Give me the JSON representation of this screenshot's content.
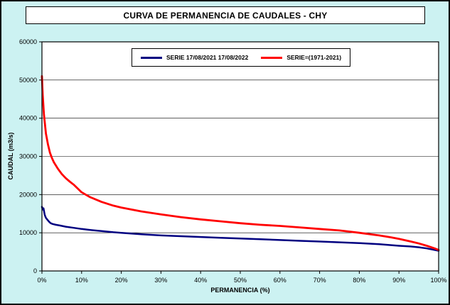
{
  "window": {
    "title": "CURVA DE PERMANENCIA DE CAUDALES - CHY"
  },
  "colors": {
    "background": "#CCF2F2",
    "plot_background": "#FFFFFF",
    "grid": "#000000",
    "axis": "#000000",
    "series_blue": "#000080",
    "series_red": "#FF0000"
  },
  "chart_data": {
    "type": "line",
    "title": "CURVA DE PERMANENCIA DE CAUDALES - CHY",
    "xlabel": "PERMANENCIA (%)",
    "ylabel": "CAUDAL (m3/s)",
    "xlim": [
      0,
      100
    ],
    "ylim": [
      0,
      60000
    ],
    "xticks": [
      0,
      10,
      20,
      30,
      40,
      50,
      60,
      70,
      80,
      90,
      100
    ],
    "xtick_labels": [
      "0%",
      "10%",
      "20%",
      "30%",
      "40%",
      "50%",
      "60%",
      "70%",
      "80%",
      "90%",
      "100%"
    ],
    "yticks": [
      0,
      10000,
      20000,
      30000,
      40000,
      50000,
      60000
    ],
    "ytick_labels": [
      "0",
      "10000",
      "20000",
      "30000",
      "40000",
      "50000",
      "60000"
    ],
    "grid": "horizontal",
    "legend_position": "top-inside",
    "series": [
      {
        "name": "SERIE 17/08/2021 17/08/2022",
        "color": "#000080",
        "line_width": 2.5,
        "x": [
          0,
          0.2,
          0.4,
          0.7,
          1,
          1.4,
          1.8,
          2.2,
          2.7,
          3.5,
          4.5,
          6,
          8,
          10,
          12,
          15,
          18,
          20,
          25,
          30,
          35,
          40,
          45,
          50,
          55,
          60,
          65,
          70,
          75,
          80,
          85,
          90,
          93,
          95,
          97,
          99,
          100
        ],
        "y": [
          16800,
          16100,
          16400,
          14700,
          13900,
          13400,
          12900,
          12500,
          12300,
          12100,
          11900,
          11600,
          11300,
          11000,
          10750,
          10450,
          10150,
          10000,
          9600,
          9300,
          9100,
          8900,
          8700,
          8500,
          8300,
          8100,
          7900,
          7700,
          7500,
          7300,
          7000,
          6600,
          6400,
          6200,
          5900,
          5500,
          5300
        ]
      },
      {
        "name": "SERIE=(1971-2021)",
        "color": "#FF0000",
        "line_width": 2.8,
        "x": [
          0,
          0.2,
          0.5,
          1,
          1.5,
          2,
          2.5,
          3,
          4,
          5,
          6,
          7,
          8,
          10,
          12,
          15,
          18,
          20,
          25,
          30,
          35,
          40,
          45,
          50,
          55,
          60,
          65,
          70,
          75,
          80,
          85,
          88,
          90,
          93,
          95,
          97,
          99,
          100
        ],
        "y": [
          51000,
          46000,
          41000,
          36000,
          33200,
          31000,
          29600,
          28500,
          26800,
          25400,
          24300,
          23400,
          22600,
          20600,
          19400,
          18100,
          17100,
          16600,
          15600,
          14800,
          14100,
          13500,
          13000,
          12500,
          12100,
          11800,
          11400,
          11000,
          10600,
          10000,
          9300,
          8800,
          8400,
          7700,
          7200,
          6600,
          5900,
          5500
        ]
      }
    ]
  }
}
